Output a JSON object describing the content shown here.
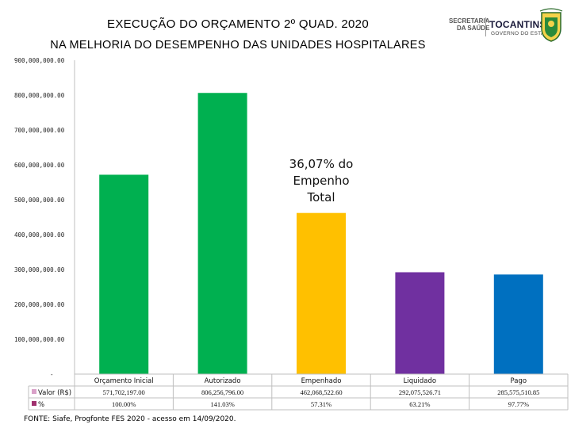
{
  "header": {
    "title_line1": "EXECUÇÃO DO ORÇAMENTO  2º QUAD. 2020",
    "title_line2": "NA MELHORIA DO DESEMPENHO DAS UNIDADES HOSPITALARES"
  },
  "logos": {
    "secretaria_line1": "SECRETARIA",
    "secretaria_line2": "DA SAÚDE",
    "tocantins": "TOCANTINS",
    "governo": "GOVERNO DO ESTADO"
  },
  "chart_data": {
    "type": "bar",
    "categories": [
      "Orçamento Inicial",
      "Autorizado",
      "Empenhado",
      "Liquidado",
      "Pago"
    ],
    "values": [
      571702197.0,
      806256796.0,
      462068522.6,
      292075526.71,
      285575510.85
    ],
    "colors": [
      "#00b050",
      "#00b050",
      "#ffc000",
      "#7030a0",
      "#0070c0"
    ],
    "ylim": [
      0,
      900000000
    ],
    "yticks": [
      0,
      100000000,
      200000000,
      300000000,
      400000000,
      500000000,
      600000000,
      700000000,
      800000000,
      900000000
    ],
    "ytick_labels": [
      "-",
      "100,000,000.00",
      "200,000,000.00",
      "300,000,000.00",
      "400,000,000.00",
      "500,000,000.00",
      "600,000,000.00",
      "700,000,000.00",
      "800,000,000.00",
      "900,000,000.00"
    ],
    "grid": false,
    "annotation": [
      "36,07% do",
      "Empenho",
      "Total"
    ],
    "table": {
      "rows": [
        {
          "label": "Valor (R$)",
          "marker_color": "#d9a0c8",
          "cells": [
            "571,702,197.00",
            "806,256,796.00",
            "462,068,522.60",
            "292,075,526.71",
            "285,575,510.85"
          ]
        },
        {
          "label": "%",
          "marker_color": "#a0306e",
          "cells": [
            "100.00%",
            "141.03%",
            "57.31%",
            "63.21%",
            "97.77%"
          ]
        }
      ]
    }
  },
  "footer": {
    "source": "FONTE: Siafe, Progfonte FES 2020 - acesso em 14/09/2020."
  }
}
